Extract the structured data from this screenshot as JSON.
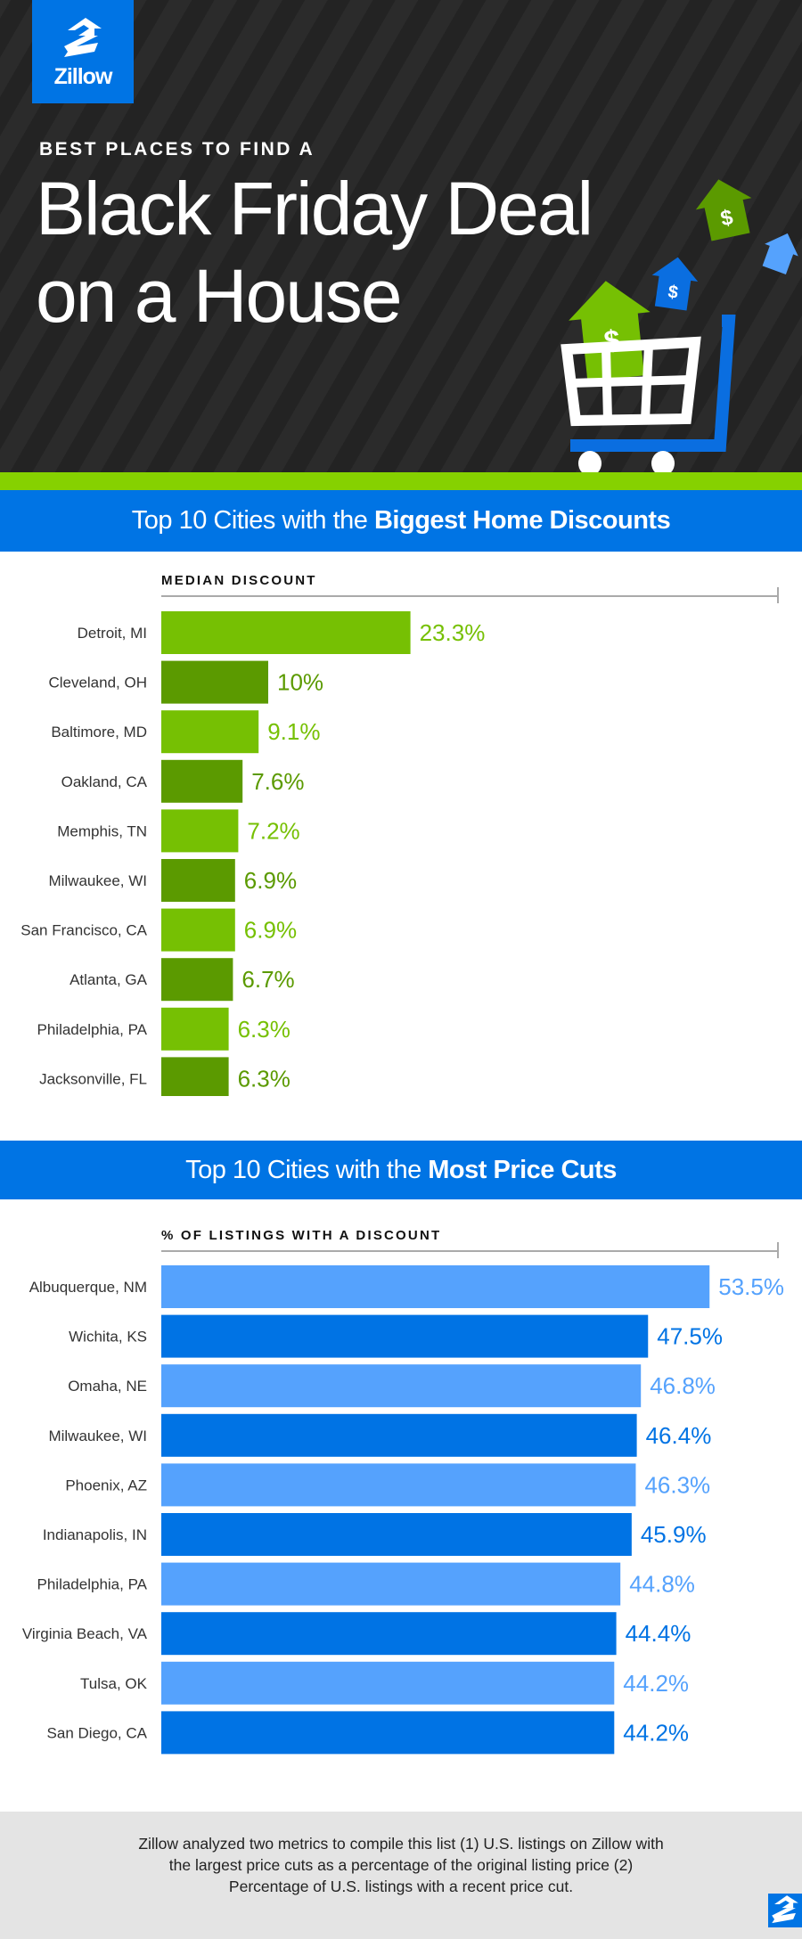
{
  "logo": {
    "text": "Zillow"
  },
  "hero": {
    "kicker": "BEST PLACES TO FIND A",
    "title_line1": "Black Friday Deal",
    "title_line2": "on a House",
    "icon_names": [
      "house-dollar-icon",
      "shopping-cart-icon"
    ]
  },
  "colors": {
    "brand_blue": "#0074e4",
    "green_light": "#76c003",
    "green_dark": "#5b9a00",
    "blue_light": "#55a2fd",
    "blue_dark": "#0073e4",
    "stripe_green": "#86d100"
  },
  "section1": {
    "banner_prefix": "Top 10 Cities with the ",
    "banner_bold": "Biggest Home Discounts"
  },
  "section2": {
    "banner_prefix": "Top 10 Cities with the ",
    "banner_bold": "Most Price Cuts"
  },
  "chart_data": [
    {
      "type": "bar",
      "orientation": "horizontal",
      "title": "MEDIAN DISCOUNT",
      "xlim": [
        0,
        50
      ],
      "categories": [
        "Detroit, MI",
        "Cleveland, OH",
        "Baltimore, MD",
        "Oakland, CA",
        "Memphis, TN",
        "Milwaukee, WI",
        "San Francisco, CA",
        "Atlanta, GA",
        "Philadelphia, PA",
        "Jacksonville, FL"
      ],
      "values": [
        23.3,
        10,
        9.1,
        7.6,
        7.2,
        6.9,
        6.9,
        6.7,
        6.3,
        6.3
      ],
      "labels": [
        "23.3%",
        "10%",
        "9.1%",
        "7.6%",
        "7.2%",
        "6.9%",
        "6.9%",
        "6.7%",
        "6.3%",
        "6.3%"
      ],
      "unit": "%"
    },
    {
      "type": "bar",
      "orientation": "horizontal",
      "title": "% OF LISTINGS WITH A DISCOUNT",
      "xlim": [
        0,
        60
      ],
      "categories": [
        "Albuquerque, NM",
        "Wichita, KS",
        "Omaha, NE",
        "Milwaukee, WI",
        "Phoenix, AZ",
        "Indianapolis, IN",
        "Philadelphia, PA",
        "Virginia Beach, VA",
        "Tulsa, OK",
        "San Diego, CA"
      ],
      "values": [
        53.5,
        47.5,
        46.8,
        46.4,
        46.3,
        45.9,
        44.8,
        44.4,
        44.2,
        44.2
      ],
      "labels": [
        "53.5%",
        "47.5%",
        "46.8%",
        "46.4%",
        "46.3%",
        "45.9%",
        "44.8%",
        "44.4%",
        "44.2%",
        "44.2%"
      ],
      "unit": "%"
    }
  ],
  "footer": {
    "text": "Zillow analyzed two metrics to compile this list (1) U.S. listings on Zillow with the largest price cuts as a percentage of the original listing price (2) Percentage of U.S. listings with a recent price cut."
  }
}
